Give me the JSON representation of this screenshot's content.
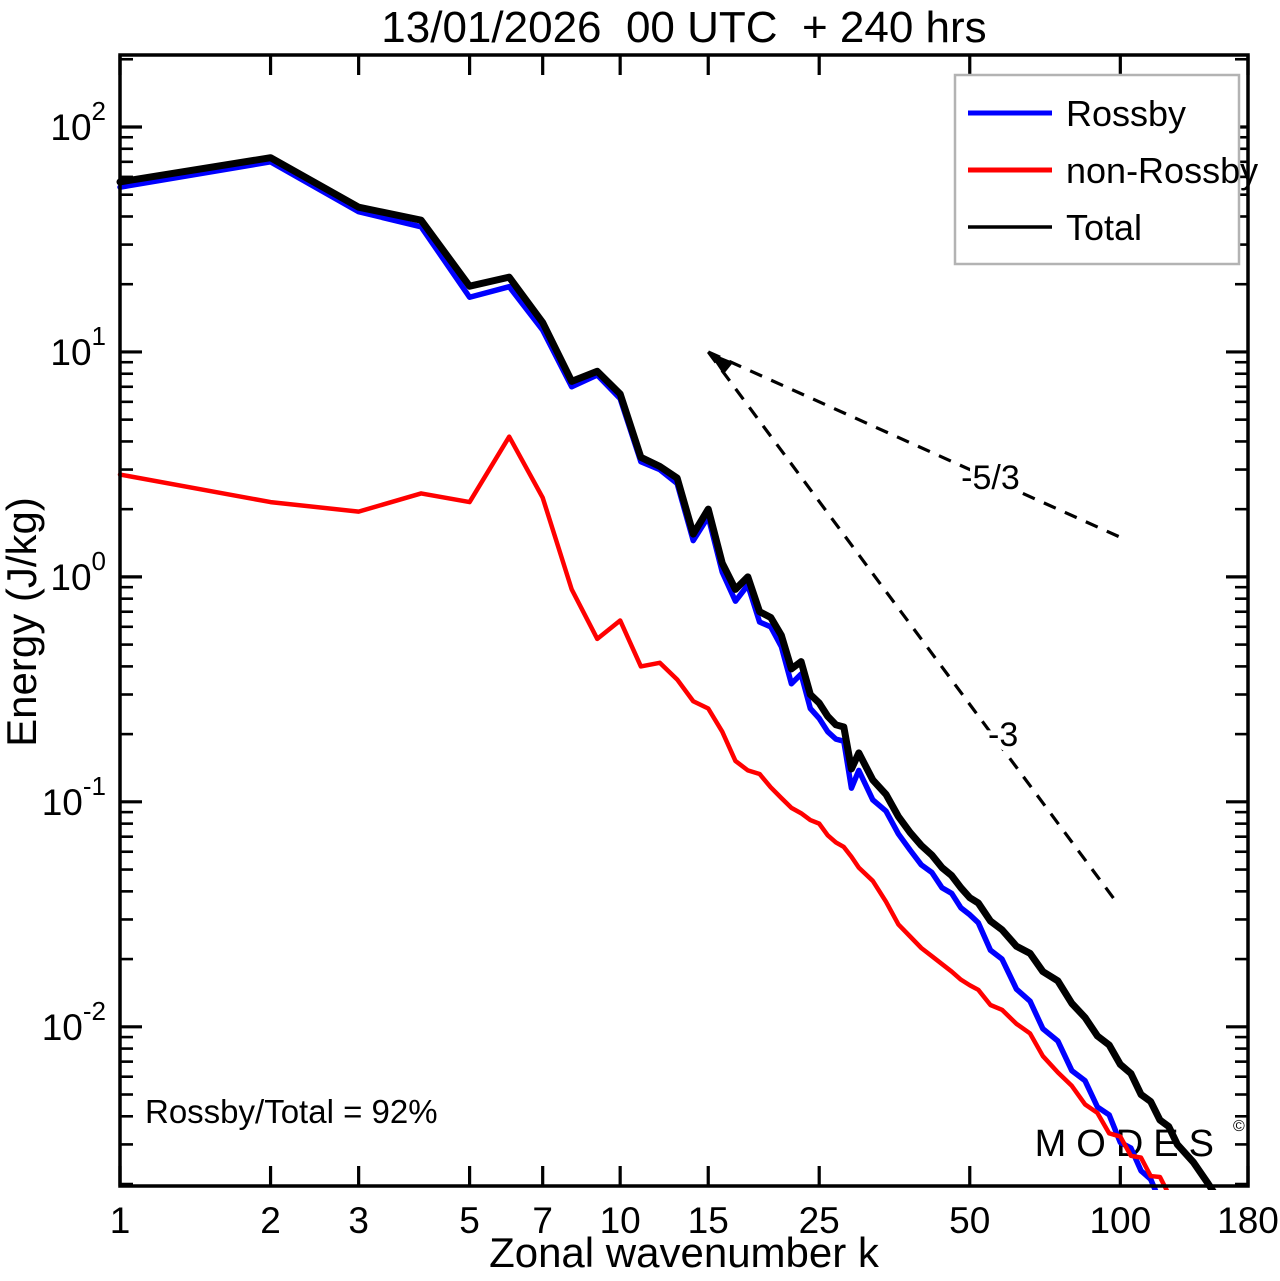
{
  "chart_data": {
    "type": "line",
    "title": "13/01/2026  00 UTC  + 240 hrs",
    "xlabel": "Zonal wavenumber k",
    "ylabel": "Energy (J/kg)",
    "x_scale": "log",
    "y_scale": "log",
    "xlim": [
      1,
      180
    ],
    "ylim": [
      0.00196,
      208.9
    ],
    "grid": false,
    "x_ticks": [
      1,
      2,
      3,
      5,
      7,
      10,
      15,
      25,
      50,
      100,
      180
    ],
    "y_tick_exponents": [
      2,
      1,
      0,
      -1,
      -2
    ],
    "legend": {
      "position": "top-right",
      "border_color": "#b3b3b3",
      "entries": [
        {
          "label": "Rossby",
          "color": "#0000ff",
          "sample_width": 5
        },
        {
          "label": "non-Rossby",
          "color": "#ff0000",
          "sample_width": 5
        },
        {
          "label": "Total",
          "color": "#000000",
          "sample_width": 3.5
        }
      ]
    },
    "k": [
      1,
      2,
      3,
      4,
      5,
      6,
      7,
      8,
      9,
      10,
      11,
      12,
      13,
      14,
      15,
      16,
      17,
      18,
      19,
      20,
      21,
      22,
      23,
      24,
      25,
      26,
      27,
      28,
      29,
      30,
      32,
      34,
      36,
      38,
      40,
      42,
      44,
      46,
      48,
      50,
      52,
      55,
      58,
      62,
      66,
      70,
      75,
      80,
      85,
      90,
      95,
      100,
      105,
      110,
      115,
      120,
      125,
      130,
      140,
      150,
      160,
      170,
      180
    ],
    "series": [
      {
        "name": "Rossby",
        "color": "#0000ff",
        "width": 5.5,
        "values": [
          54,
          70,
          42,
          36,
          17.5,
          19.5,
          12.5,
          7.0,
          7.9,
          6.2,
          3.25,
          3.0,
          2.6,
          1.45,
          1.85,
          1.05,
          0.78,
          0.92,
          0.63,
          0.6,
          0.49,
          0.335,
          0.37,
          0.26,
          0.235,
          0.205,
          0.19,
          0.186,
          0.115,
          0.138,
          0.102,
          0.091,
          0.072,
          0.061,
          0.0525,
          0.0485,
          0.0415,
          0.0392,
          0.0338,
          0.0315,
          0.029,
          0.0219,
          0.02,
          0.0147,
          0.013,
          0.0098,
          0.00865,
          0.00638,
          0.00576,
          0.0044,
          0.00406,
          0.00306,
          0.00289,
          0.00229,
          0.0021,
          0.00168,
          0.0016,
          0.0013,
          0.00111,
          0.00082,
          0.00073,
          0.00055,
          0.0005
        ]
      },
      {
        "name": "non-Rossby",
        "color": "#ff0000",
        "width": 4.5,
        "values": [
          2.85,
          2.15,
          1.95,
          2.35,
          2.15,
          4.2,
          2.25,
          0.88,
          0.53,
          0.64,
          0.4,
          0.415,
          0.35,
          0.28,
          0.26,
          0.205,
          0.152,
          0.138,
          0.133,
          0.116,
          0.104,
          0.094,
          0.089,
          0.083,
          0.08,
          0.071,
          0.066,
          0.063,
          0.057,
          0.051,
          0.0445,
          0.036,
          0.0285,
          0.0252,
          0.0224,
          0.0206,
          0.019,
          0.0176,
          0.0162,
          0.0153,
          0.0146,
          0.0125,
          0.0119,
          0.0103,
          0.00934,
          0.00741,
          0.00627,
          0.00546,
          0.00452,
          0.00414,
          0.00336,
          0.00325,
          0.00267,
          0.00262,
          0.00217,
          0.00215,
          0.0018,
          0.00172,
          0.0014,
          0.00131,
          0.00104,
          0.001,
          0.0008
        ]
      },
      {
        "name": "Total",
        "color": "#000000",
        "width": 7,
        "values": [
          57,
          73,
          44,
          38.5,
          19.6,
          21.5,
          13.5,
          7.4,
          8.2,
          6.5,
          3.4,
          3.1,
          2.75,
          1.55,
          2.0,
          1.15,
          0.88,
          1.0,
          0.7,
          0.66,
          0.55,
          0.39,
          0.42,
          0.3,
          0.275,
          0.24,
          0.22,
          0.215,
          0.14,
          0.165,
          0.125,
          0.108,
          0.086,
          0.073,
          0.064,
          0.058,
          0.051,
          0.047,
          0.0415,
          0.0375,
          0.0355,
          0.0295,
          0.027,
          0.0228,
          0.0212,
          0.0176,
          0.016,
          0.0127,
          0.011,
          0.0091,
          0.0083,
          0.0068,
          0.0062,
          0.005,
          0.00465,
          0.00385,
          0.0036,
          0.003,
          0.0025,
          0.002,
          0.0016,
          0.00119,
          0.00103
        ]
      }
    ],
    "reference_lines": [
      {
        "label": "-5/3",
        "from": {
          "k": 15,
          "E": 10
        },
        "to": {
          "k": 100,
          "E": 1.5
        },
        "label_at": {
          "k": 55,
          "E": 2.78
        }
      },
      {
        "label": "-3",
        "from": {
          "k": 15,
          "E": 10
        },
        "to": {
          "k": 99,
          "E": 0.035
        },
        "label_at": {
          "k": 58.3,
          "E": 0.2
        }
      }
    ],
    "arrow": {
      "k": 15,
      "E": 10,
      "angle_deg": 39,
      "length": 26,
      "half_width": 8
    }
  },
  "annotations": {
    "corner_note": "Rossby/Total = 92%"
  },
  "watermark": {
    "text": "MODES",
    "mark": "©",
    "color": "#999999"
  }
}
